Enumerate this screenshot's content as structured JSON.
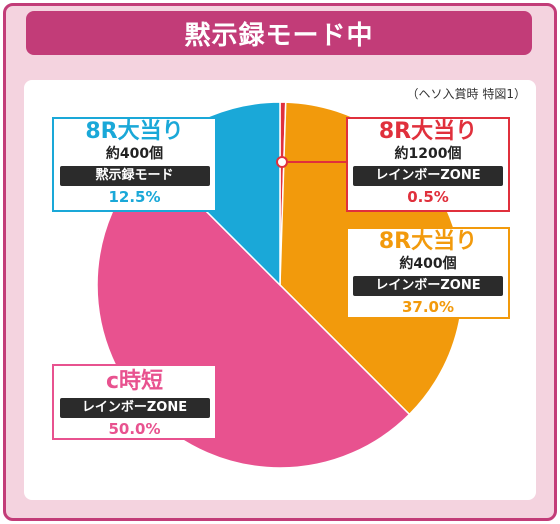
{
  "header": {
    "title": "黙示録モード中"
  },
  "note": "（ヘソ入賞時 特図1）",
  "colors": {
    "blue": "#1aa8d8",
    "red": "#e0303c",
    "orange": "#f29a0c",
    "pink": "#e8528f",
    "frame": "#c23c78"
  },
  "chart_data": {
    "type": "pie",
    "slices": [
      {
        "title": "8R大当り",
        "sub": "約1200個",
        "mode": "レインボーZONE",
        "value": 0.5,
        "pct": "0.5%",
        "color": "#e0303c"
      },
      {
        "title": "8R大当り",
        "sub": "約400個",
        "mode": "レインボーZONE",
        "value": 37.0,
        "pct": "37.0%",
        "color": "#f29a0c"
      },
      {
        "title": "c時短",
        "sub": "",
        "mode": "レインボーZONE",
        "value": 50.0,
        "pct": "50.0%",
        "color": "#e8528f"
      },
      {
        "title": "8R大当り",
        "sub": "約400個",
        "mode": "黙示録モード",
        "value": 12.5,
        "pct": "12.5%",
        "color": "#1aa8d8"
      }
    ]
  }
}
